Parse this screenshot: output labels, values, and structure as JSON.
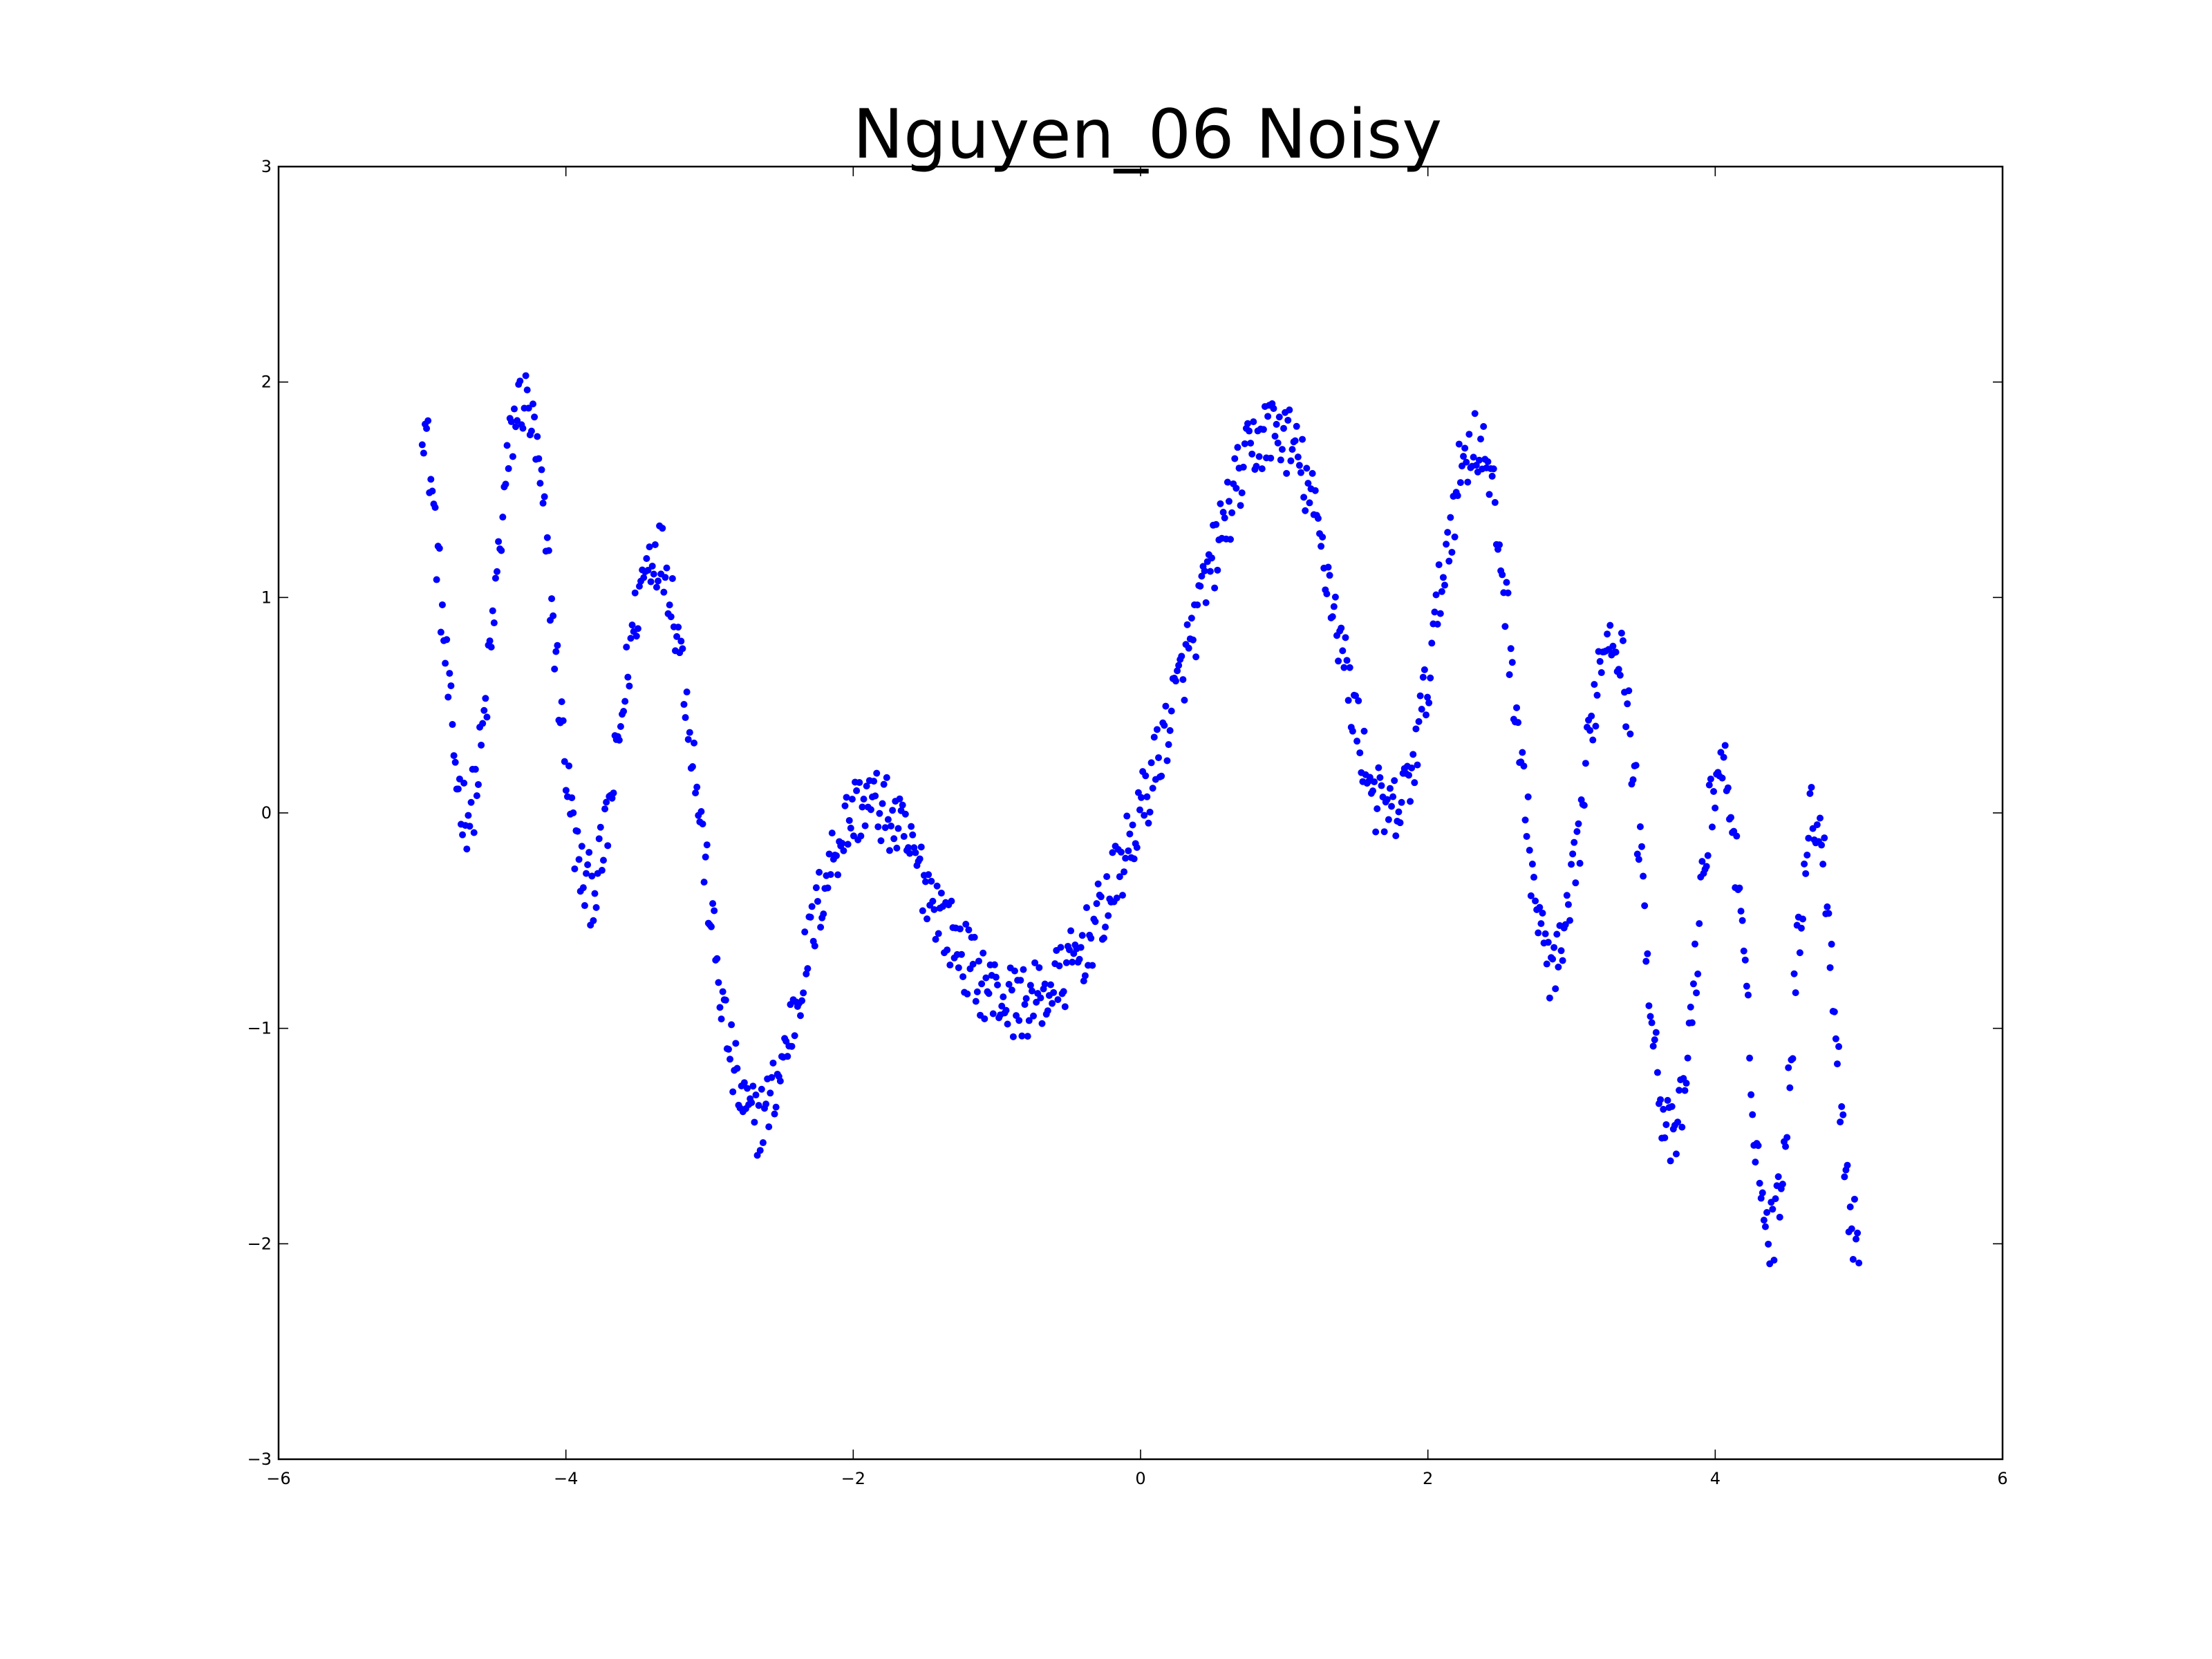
{
  "chart_data": {
    "type": "scatter",
    "title": "Nguyen_06 Noisy",
    "xlabel": "",
    "ylabel": "",
    "xlim": [
      -6,
      6
    ],
    "ylim": [
      -3,
      3
    ],
    "x_ticks": [
      -6,
      -4,
      -2,
      0,
      2,
      4,
      6
    ],
    "y_ticks": [
      -3,
      -2,
      -1,
      0,
      1,
      2,
      3
    ],
    "x_tick_labels": [
      "−6",
      "−4",
      "−2",
      "0",
      "2",
      "4",
      "6"
    ],
    "y_tick_labels": [
      "−3",
      "−2",
      "−1",
      "0",
      "1",
      "2",
      "3"
    ],
    "grid": false,
    "legend": "none",
    "marker_color": "#0000ff",
    "series": [
      {
        "n_points": 1000,
        "x_range": [
          -5,
          5
        ],
        "function": "sin(x) + sin(x + x^2)",
        "noise_amplitude": 0.17,
        "sample_points": [
          [
            -5.0,
            1.8
          ],
          [
            -4.85,
            1.05
          ],
          [
            -4.75,
            0.3
          ],
          [
            -4.7,
            -0.05
          ],
          [
            -4.6,
            0.15
          ],
          [
            -4.5,
            0.85
          ],
          [
            -4.4,
            1.7
          ],
          [
            -4.3,
            2.05
          ],
          [
            -4.2,
            1.6
          ],
          [
            -4.1,
            0.8
          ],
          [
            -4.0,
            0.3
          ],
          [
            -3.9,
            -0.35
          ],
          [
            -3.8,
            -0.3
          ],
          [
            -3.7,
            0.1
          ],
          [
            -3.6,
            0.6
          ],
          [
            -3.5,
            1.0
          ],
          [
            -3.4,
            1.25
          ],
          [
            -3.3,
            1.1
          ],
          [
            -3.2,
            0.7
          ],
          [
            -3.1,
            0.1
          ],
          [
            -3.0,
            -0.6
          ],
          [
            -2.9,
            -1.15
          ],
          [
            -2.8,
            -1.45
          ],
          [
            -2.7,
            -1.5
          ],
          [
            -2.6,
            -1.35
          ],
          [
            -2.5,
            -1.1
          ],
          [
            -2.4,
            -0.8
          ],
          [
            -2.3,
            -0.5
          ],
          [
            -2.2,
            -0.25
          ],
          [
            -2.1,
            -0.1
          ],
          [
            -2.0,
            0.0
          ],
          [
            -1.9,
            0.05
          ],
          [
            -1.8,
            0.0
          ],
          [
            -1.7,
            -0.1
          ],
          [
            -1.6,
            -0.25
          ],
          [
            -1.5,
            -0.4
          ],
          [
            -1.4,
            -0.55
          ],
          [
            -1.3,
            -0.65
          ],
          [
            -1.2,
            -0.75
          ],
          [
            -1.1,
            -0.85
          ],
          [
            -1.0,
            -0.85
          ],
          [
            -0.9,
            -0.85
          ],
          [
            -0.8,
            -0.85
          ],
          [
            -0.7,
            -0.85
          ],
          [
            -0.6,
            -0.8
          ],
          [
            -0.5,
            -0.7
          ],
          [
            -0.4,
            -0.5
          ],
          [
            -0.3,
            -0.3
          ],
          [
            -0.2,
            -0.15
          ],
          [
            -0.1,
            -0.05
          ],
          [
            0.0,
            0.05
          ],
          [
            0.1,
            0.25
          ],
          [
            0.2,
            0.45
          ],
          [
            0.3,
            0.65
          ],
          [
            0.4,
            0.9
          ],
          [
            0.5,
            1.15
          ],
          [
            0.6,
            1.4
          ],
          [
            0.7,
            1.6
          ],
          [
            0.8,
            1.7
          ],
          [
            0.9,
            1.75
          ],
          [
            1.0,
            1.7
          ],
          [
            1.1,
            1.6
          ],
          [
            1.2,
            1.4
          ],
          [
            1.3,
            1.1
          ],
          [
            1.4,
            0.75
          ],
          [
            1.5,
            0.4
          ],
          [
            1.6,
            0.15
          ],
          [
            1.7,
            0.0
          ],
          [
            1.8,
            0.05
          ],
          [
            1.9,
            0.35
          ],
          [
            2.0,
            0.8
          ],
          [
            2.1,
            1.2
          ],
          [
            2.2,
            1.55
          ],
          [
            2.3,
            1.7
          ],
          [
            2.4,
            1.6
          ],
          [
            2.5,
            1.2
          ],
          [
            2.6,
            0.55
          ],
          [
            2.7,
            -0.1
          ],
          [
            2.8,
            -0.6
          ],
          [
            2.9,
            -0.75
          ],
          [
            3.0,
            -0.45
          ],
          [
            3.1,
            0.05
          ],
          [
            3.2,
            0.55
          ],
          [
            3.3,
            0.85
          ],
          [
            3.4,
            0.7
          ],
          [
            3.5,
            0.1
          ],
          [
            3.6,
            -0.75
          ],
          [
            3.7,
            -1.45
          ],
          [
            3.8,
            -1.3
          ],
          [
            3.9,
            -0.5
          ],
          [
            4.0,
            0.2
          ],
          [
            4.1,
            -0.2
          ],
          [
            4.2,
            -0.9
          ],
          [
            4.3,
            -1.7
          ],
          [
            4.4,
            -2.0
          ],
          [
            4.5,
            -1.35
          ],
          [
            4.6,
            -0.4
          ],
          [
            4.7,
            0.0
          ],
          [
            4.8,
            -0.8
          ],
          [
            4.9,
            -1.6
          ],
          [
            5.0,
            -2.0
          ]
        ]
      }
    ]
  }
}
